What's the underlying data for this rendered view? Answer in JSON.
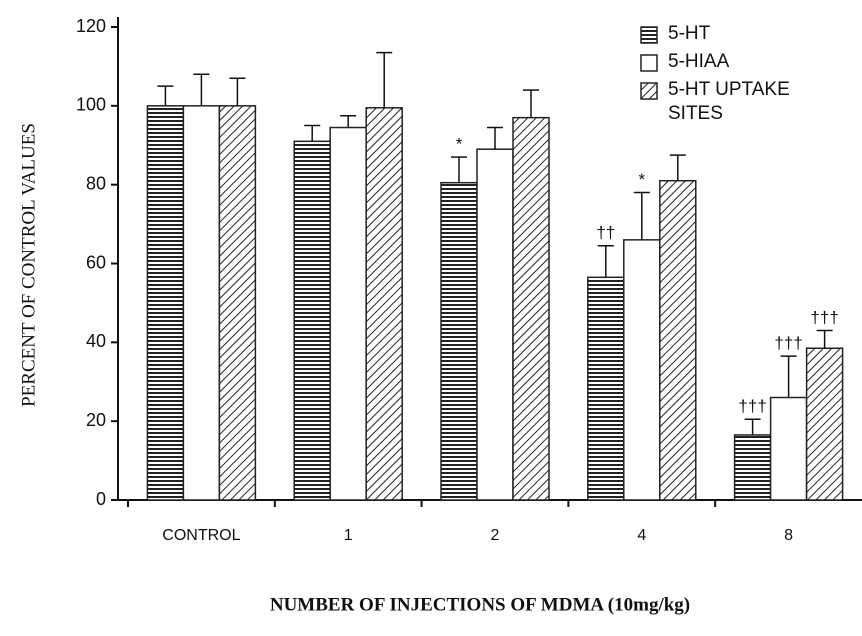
{
  "chart_data": {
    "type": "bar",
    "y_label": "PERCENT OF CONTROL VALUES",
    "x_label": "NUMBER OF INJECTIONS OF MDMA (10mg/kg)",
    "categories": [
      "CONTROL",
      "1",
      "2",
      "4",
      "8"
    ],
    "series": [
      {
        "name": "5-HT",
        "pattern": "horizontal",
        "color": "#222",
        "values": [
          100,
          91,
          80.5,
          56.5,
          16.5
        ],
        "errors": [
          5,
          4,
          6.5,
          8,
          4
        ],
        "markers": [
          null,
          null,
          "*",
          "††",
          "†††"
        ]
      },
      {
        "name": "5-HIAA",
        "pattern": "none",
        "color": "#222",
        "values": [
          100,
          94.5,
          89,
          66,
          26
        ],
        "errors": [
          8,
          3,
          5.5,
          12,
          10.5
        ],
        "markers": [
          null,
          null,
          null,
          "*",
          "†††"
        ]
      },
      {
        "name": "5-HT UPTAKE SITES",
        "pattern": "diagonal",
        "color": "#222",
        "values": [
          100,
          99.5,
          97,
          81,
          38.5
        ],
        "errors": [
          7,
          14,
          7,
          6.5,
          4.5
        ],
        "markers": [
          null,
          null,
          null,
          null,
          "†††"
        ]
      }
    ],
    "ylim": [
      0,
      120
    ],
    "yticks": [
      0,
      20,
      40,
      60,
      80,
      100,
      120
    ],
    "grid": false
  }
}
